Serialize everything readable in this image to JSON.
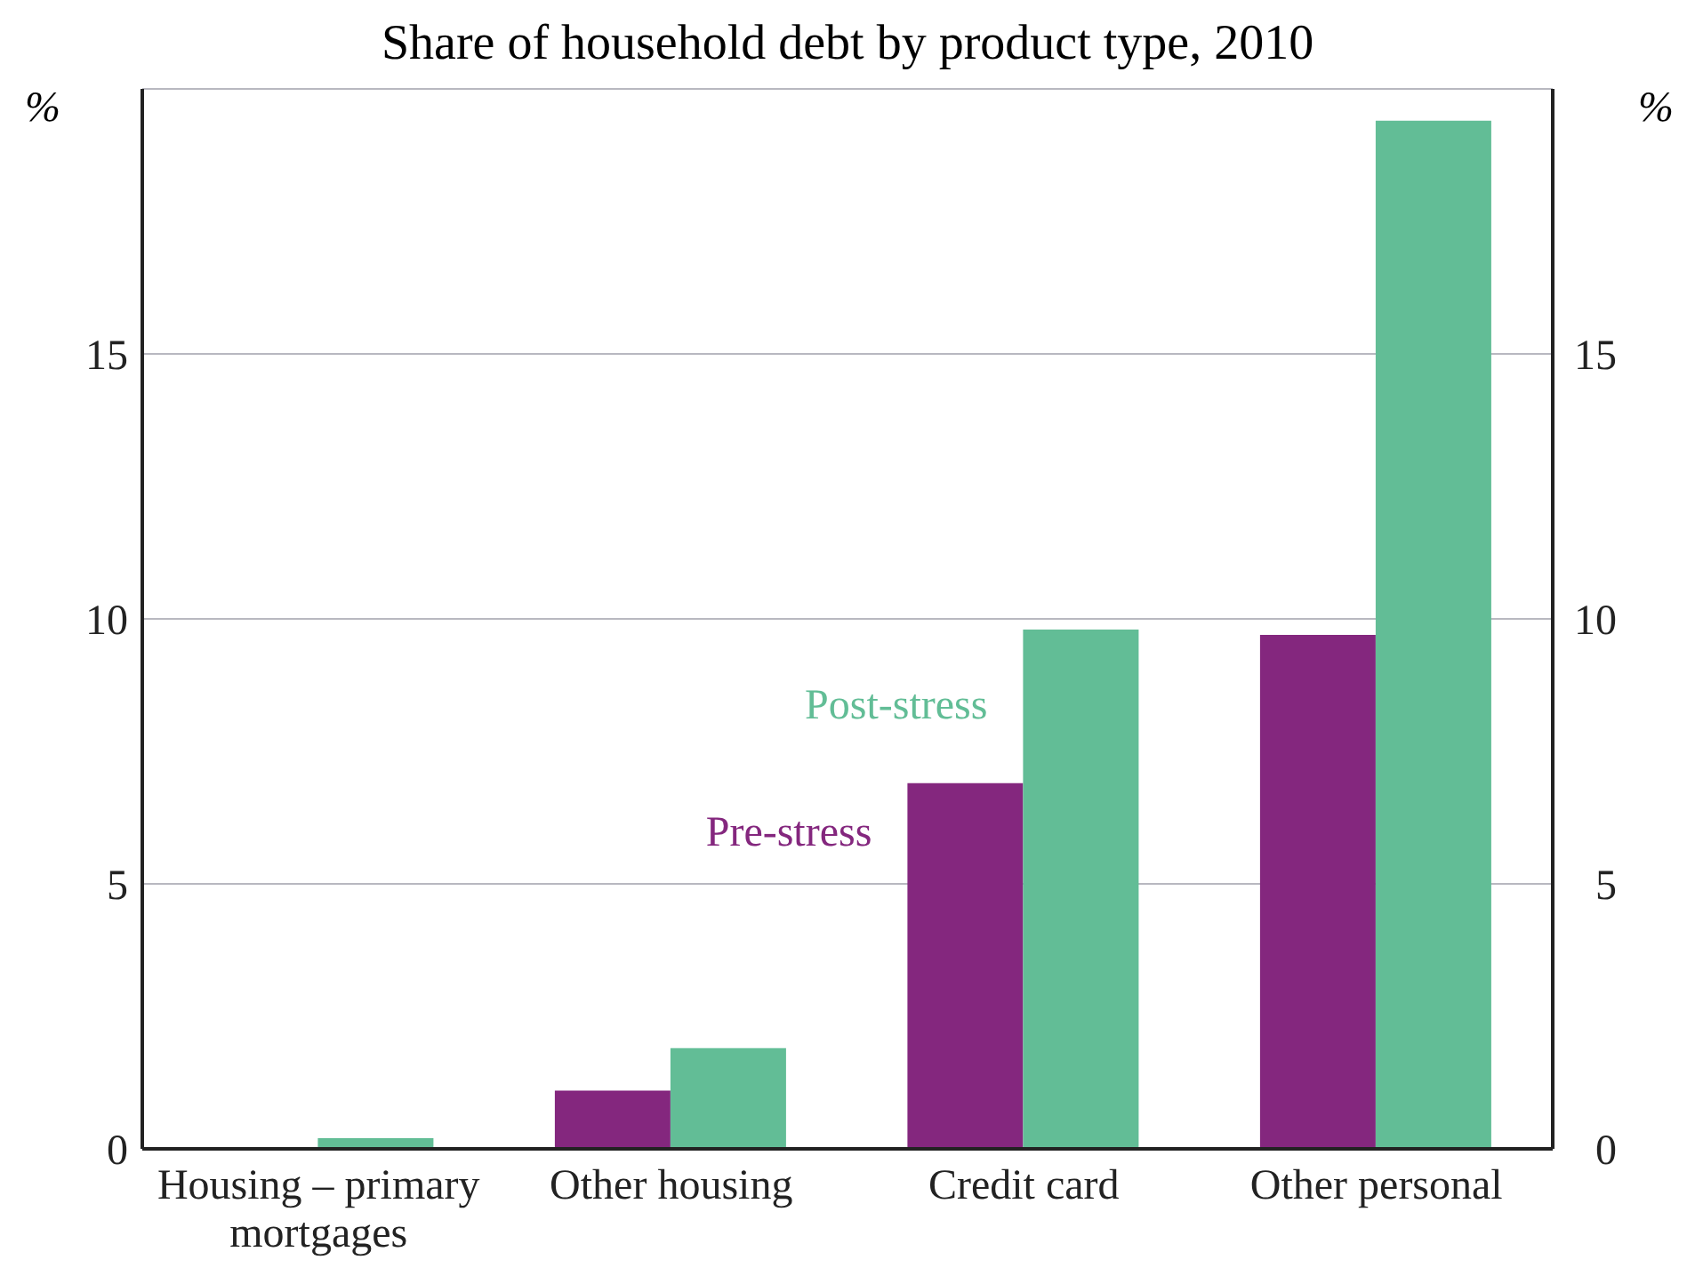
{
  "chart_data": {
    "type": "bar",
    "title": "Share of household debt by product type, 2010",
    "ylabel": "%",
    "y2label": "%",
    "categories": [
      "Housing – primary mortgages",
      "Other housing",
      "Credit card",
      "Other personal"
    ],
    "series": [
      {
        "name": "Pre-stress",
        "color": "#84277e",
        "values": [
          0,
          1.1,
          6.9,
          9.7
        ]
      },
      {
        "name": "Post-stress",
        "color": "#62bd96",
        "values": [
          0.2,
          1.9,
          9.8,
          19.4
        ]
      }
    ],
    "ylim": [
      0,
      20
    ],
    "yticks": [
      0,
      5,
      10,
      15
    ],
    "y2lim": [
      0,
      20
    ],
    "y2ticks": [
      0,
      5,
      10,
      15
    ],
    "grid": "y",
    "legend": false
  }
}
